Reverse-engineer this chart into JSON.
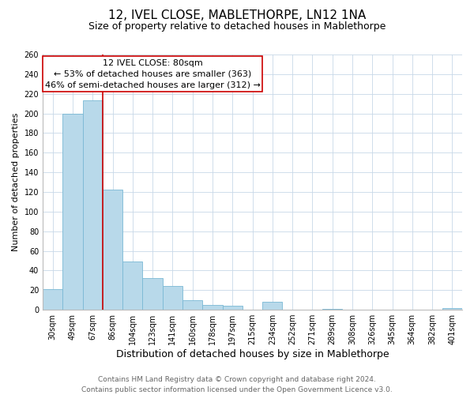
{
  "title": "12, IVEL CLOSE, MABLETHORPE, LN12 1NA",
  "subtitle": "Size of property relative to detached houses in Mablethorpe",
  "xlabel": "Distribution of detached houses by size in Mablethorpe",
  "ylabel": "Number of detached properties",
  "bar_labels": [
    "30sqm",
    "49sqm",
    "67sqm",
    "86sqm",
    "104sqm",
    "123sqm",
    "141sqm",
    "160sqm",
    "178sqm",
    "197sqm",
    "215sqm",
    "234sqm",
    "252sqm",
    "271sqm",
    "289sqm",
    "308sqm",
    "326sqm",
    "345sqm",
    "364sqm",
    "382sqm",
    "401sqm"
  ],
  "bar_values": [
    21,
    200,
    213,
    122,
    49,
    32,
    24,
    10,
    5,
    4,
    0,
    8,
    0,
    0,
    1,
    0,
    0,
    0,
    0,
    0,
    2
  ],
  "bar_color": "#b8d9ea",
  "bar_edge_color": "#7ab8d4",
  "vline_color": "#cc0000",
  "vline_x_index": 2.5,
  "ann_line1": "12 IVEL CLOSE: 80sqm",
  "ann_line2": "← 53% of detached houses are smaller (363)",
  "ann_line3": "46% of semi-detached houses are larger (312) →",
  "ann_box_color": "#cc0000",
  "ylim": [
    0,
    260
  ],
  "yticks": [
    0,
    20,
    40,
    60,
    80,
    100,
    120,
    140,
    160,
    180,
    200,
    220,
    240,
    260
  ],
  "footer_text": "Contains HM Land Registry data © Crown copyright and database right 2024.\nContains public sector information licensed under the Open Government Licence v3.0.",
  "background_color": "#ffffff",
  "grid_color": "#c8d8e8",
  "title_fontsize": 11,
  "subtitle_fontsize": 9,
  "xlabel_fontsize": 9,
  "ylabel_fontsize": 8,
  "tick_fontsize": 7,
  "annotation_fontsize": 8,
  "footer_fontsize": 6.5
}
